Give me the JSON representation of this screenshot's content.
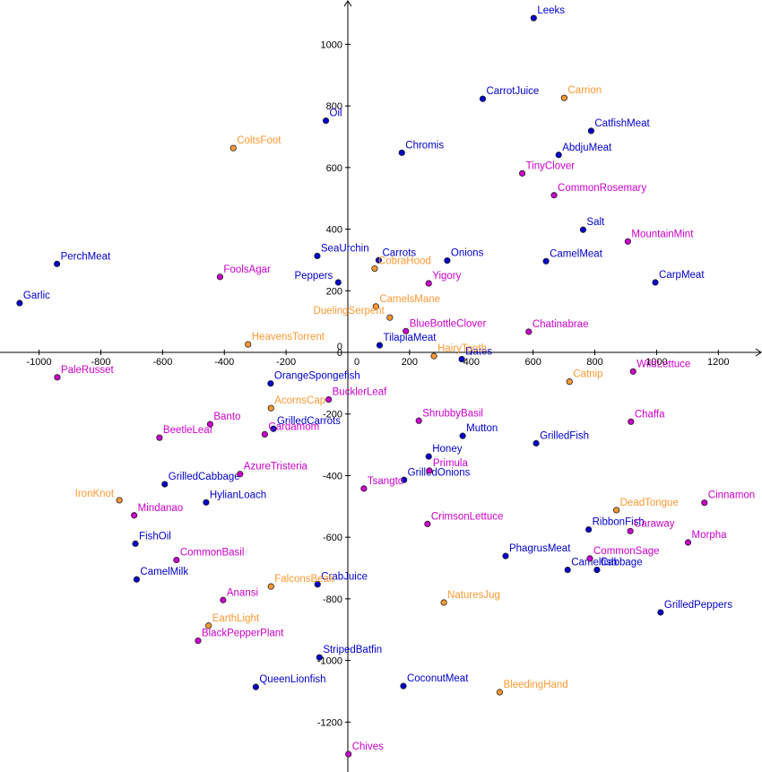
{
  "chart_data": {
    "type": "scatter",
    "title": "",
    "xlabel": "",
    "ylabel": "",
    "xlim": [
      -1100,
      1330
    ],
    "ylim": [
      -1330,
      1110
    ],
    "grid": false,
    "x_ticks": [
      -1000,
      -800,
      -600,
      -400,
      -200,
      0,
      200,
      400,
      600,
      800,
      1000,
      1200
    ],
    "x_tick_labels": [
      "-1000",
      "-800",
      "-600",
      "-400",
      "-200",
      "0",
      "200",
      "400",
      "600",
      "800",
      "1000",
      "1200"
    ],
    "y_ticks": [
      -1200,
      -1000,
      -800,
      -600,
      -400,
      -200,
      0,
      200,
      400,
      600,
      800,
      1000
    ],
    "y_tick_labels": [
      "-1200",
      "-1000",
      "-800",
      "-600",
      "-400",
      "-200",
      "0",
      "200",
      "400",
      "600",
      "800",
      "1000"
    ],
    "colors": {
      "blue": "#0000cc",
      "orange": "#ff9933",
      "magenta": "#cc00cc"
    },
    "series": [
      {
        "color": "blue",
        "points": [
          {
            "label": "Leeks",
            "x": 602,
            "y": 1085
          },
          {
            "label": "CarrotJuice",
            "x": 437,
            "y": 823
          },
          {
            "label": "Oil",
            "x": -71,
            "y": 752
          },
          {
            "label": "CatfishMeat",
            "x": 788,
            "y": 719
          },
          {
            "label": "Chromis",
            "x": 175,
            "y": 648
          },
          {
            "label": "AbdjuMeat",
            "x": 683,
            "y": 641
          },
          {
            "label": "Salt",
            "x": 762,
            "y": 398
          },
          {
            "label": "SeaUrchin",
            "x": -99,
            "y": 313
          },
          {
            "label": "Carrots",
            "x": 100,
            "y": 299
          },
          {
            "label": "Onions",
            "x": 322,
            "y": 298
          },
          {
            "label": "CamelMeat",
            "x": 642,
            "y": 296
          },
          {
            "label": "PerchMeat",
            "x": -942,
            "y": 287
          },
          {
            "label": "CarpMeat",
            "x": 996,
            "y": 227
          },
          {
            "label": "Peppers",
            "x": -31,
            "y": 227
          },
          {
            "label": "Garlic",
            "x": -1063,
            "y": 160
          },
          {
            "label": "TilapiaMeat",
            "x": 103,
            "y": 23
          },
          {
            "label": "Dates",
            "x": 369,
            "y": -22
          },
          {
            "label": "OrangeSpongefish",
            "x": -250,
            "y": -101
          },
          {
            "label": "Mutton",
            "x": 372,
            "y": -271
          },
          {
            "label": "GrilledFish",
            "x": 610,
            "y": -295
          },
          {
            "label": "GrilledCarrots",
            "x": -241,
            "y": -248
          },
          {
            "label": "Honey",
            "x": 262,
            "y": -338
          },
          {
            "label": "GrilledCabbage",
            "x": -593,
            "y": -428
          },
          {
            "label": "GrilledOnions",
            "x": 182,
            "y": -414
          },
          {
            "label": "HylianLoach",
            "x": -459,
            "y": -487
          },
          {
            "label": "RibbonFish",
            "x": 780,
            "y": -575
          },
          {
            "label": "FishOil",
            "x": -688,
            "y": -621
          },
          {
            "label": "PhagrusMeat",
            "x": 511,
            "y": -661
          },
          {
            "label": "CamelMilk",
            "x": -684,
            "y": -737
          },
          {
            "label": "Camelfish",
            "x": 712,
            "y": -706
          },
          {
            "label": "Cabbage",
            "x": 807,
            "y": -706
          },
          {
            "label": "CrabJuice",
            "x": -98,
            "y": -753
          },
          {
            "label": "GrilledPeppers",
            "x": 1013,
            "y": -844
          },
          {
            "label": "StripedBatfin",
            "x": -92,
            "y": -990
          },
          {
            "label": "QueenLionfish",
            "x": -298,
            "y": -1086
          },
          {
            "label": "CoconutMeat",
            "x": 180,
            "y": -1083
          }
        ]
      },
      {
        "color": "orange",
        "points": [
          {
            "label": "Carrion",
            "x": 701,
            "y": 826
          },
          {
            "label": "ColtsFoot",
            "x": -371,
            "y": 663
          },
          {
            "label": "CobraHood",
            "x": 87,
            "y": 272
          },
          {
            "label": "CamelsMane",
            "x": 91,
            "y": 149
          },
          {
            "label": "DuelingSerpent",
            "x": 136,
            "y": 113
          },
          {
            "label": "HeavensTorrent",
            "x": -323,
            "y": 26
          },
          {
            "label": "HairyTooth",
            "x": 279,
            "y": -12
          },
          {
            "label": "Catnip",
            "x": 718,
            "y": -95
          },
          {
            "label": "AcornsCap",
            "x": -249,
            "y": -181
          },
          {
            "label": "IronKnot",
            "x": -740,
            "y": -480
          },
          {
            "label": "DeadTongue",
            "x": 870,
            "y": -512
          },
          {
            "label": "FalconsBeak",
            "x": -249,
            "y": -760
          },
          {
            "label": "NaturesJug",
            "x": 311,
            "y": -812
          },
          {
            "label": "EarthLight",
            "x": -451,
            "y": -887
          },
          {
            "label": "BleedingHand",
            "x": 492,
            "y": -1103
          }
        ]
      },
      {
        "color": "magenta",
        "points": [
          {
            "label": "TinyClover",
            "x": 565,
            "y": 581
          },
          {
            "label": "CommonRosemary",
            "x": 668,
            "y": 510
          },
          {
            "label": "MountainMint",
            "x": 907,
            "y": 360
          },
          {
            "label": "FoolsAgar",
            "x": -414,
            "y": 245
          },
          {
            "label": "Yigory",
            "x": 262,
            "y": 224
          },
          {
            "label": "BlueBottleClover",
            "x": 188,
            "y": 69
          },
          {
            "label": "Chatinabrae",
            "x": 586,
            "y": 67
          },
          {
            "label": "PaleRusset",
            "x": -941,
            "y": -81
          },
          {
            "label": "WildLettuce",
            "x": 924,
            "y": -62
          },
          {
            "label": "BucklerLeaf",
            "x": -62,
            "y": -153
          },
          {
            "label": "ShrubbyBasil",
            "x": 230,
            "y": -222
          },
          {
            "label": "Chaffa",
            "x": 917,
            "y": -225
          },
          {
            "label": "Banto",
            "x": -446,
            "y": -233
          },
          {
            "label": "BeetleLeaf",
            "x": -610,
            "y": -277
          },
          {
            "label": "Cardamom",
            "x": -269,
            "y": -266
          },
          {
            "label": "Primula",
            "x": 264,
            "y": -384
          },
          {
            "label": "AzureTristeria",
            "x": -349,
            "y": -395
          },
          {
            "label": "Tsangto",
            "x": 52,
            "y": -442
          },
          {
            "label": "Cinnamon",
            "x": 1155,
            "y": -488
          },
          {
            "label": "Mindanao",
            "x": -692,
            "y": -529
          },
          {
            "label": "CrimsonLettuce",
            "x": 258,
            "y": -557
          },
          {
            "label": "Caraway",
            "x": 915,
            "y": -580
          },
          {
            "label": "Morpha",
            "x": 1102,
            "y": -617
          },
          {
            "label": "CommonBasil",
            "x": -555,
            "y": -674
          },
          {
            "label": "CommonSage",
            "x": 784,
            "y": -669
          },
          {
            "label": "Anansi",
            "x": -404,
            "y": -804
          },
          {
            "label": "BlackPepperPlant",
            "x": -485,
            "y": -936
          },
          {
            "label": "Chives",
            "x": 2,
            "y": -1304
          }
        ]
      }
    ]
  }
}
